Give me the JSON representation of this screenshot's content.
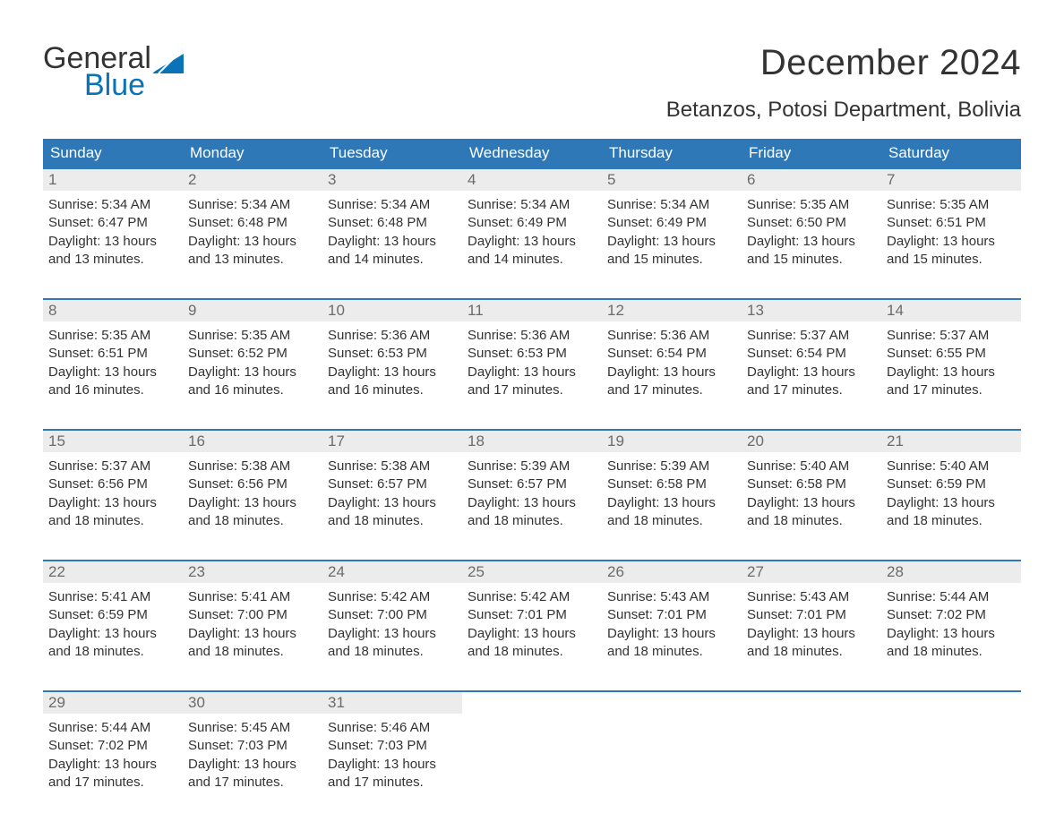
{
  "logo": {
    "text_general": "General",
    "text_blue": "Blue",
    "flag_color": "#0a73b7"
  },
  "header": {
    "month_title": "December 2024",
    "location": "Betanzos, Potosi Department, Bolivia"
  },
  "colors": {
    "header_bg": "#2f78b7",
    "header_text": "#ffffff",
    "daynum_bg": "#ececec",
    "daynum_text": "#6b6b6b",
    "body_text": "#333333",
    "row_border": "#2f78b7",
    "page_bg": "#ffffff",
    "logo_accent": "#0a73b7"
  },
  "typography": {
    "month_title_fontsize": 40,
    "location_fontsize": 24,
    "weekday_fontsize": 17,
    "daynum_fontsize": 17,
    "body_fontsize": 15,
    "font_family": "Arial"
  },
  "calendar": {
    "type": "table",
    "columns": [
      "Sunday",
      "Monday",
      "Tuesday",
      "Wednesday",
      "Thursday",
      "Friday",
      "Saturday"
    ],
    "weeks": [
      [
        {
          "day": "1",
          "sunrise": "5:34 AM",
          "sunset": "6:47 PM",
          "daylight": "13 hours and 13 minutes."
        },
        {
          "day": "2",
          "sunrise": "5:34 AM",
          "sunset": "6:48 PM",
          "daylight": "13 hours and 13 minutes."
        },
        {
          "day": "3",
          "sunrise": "5:34 AM",
          "sunset": "6:48 PM",
          "daylight": "13 hours and 14 minutes."
        },
        {
          "day": "4",
          "sunrise": "5:34 AM",
          "sunset": "6:49 PM",
          "daylight": "13 hours and 14 minutes."
        },
        {
          "day": "5",
          "sunrise": "5:34 AM",
          "sunset": "6:49 PM",
          "daylight": "13 hours and 15 minutes."
        },
        {
          "day": "6",
          "sunrise": "5:35 AM",
          "sunset": "6:50 PM",
          "daylight": "13 hours and 15 minutes."
        },
        {
          "day": "7",
          "sunrise": "5:35 AM",
          "sunset": "6:51 PM",
          "daylight": "13 hours and 15 minutes."
        }
      ],
      [
        {
          "day": "8",
          "sunrise": "5:35 AM",
          "sunset": "6:51 PM",
          "daylight": "13 hours and 16 minutes."
        },
        {
          "day": "9",
          "sunrise": "5:35 AM",
          "sunset": "6:52 PM",
          "daylight": "13 hours and 16 minutes."
        },
        {
          "day": "10",
          "sunrise": "5:36 AM",
          "sunset": "6:53 PM",
          "daylight": "13 hours and 16 minutes."
        },
        {
          "day": "11",
          "sunrise": "5:36 AM",
          "sunset": "6:53 PM",
          "daylight": "13 hours and 17 minutes."
        },
        {
          "day": "12",
          "sunrise": "5:36 AM",
          "sunset": "6:54 PM",
          "daylight": "13 hours and 17 minutes."
        },
        {
          "day": "13",
          "sunrise": "5:37 AM",
          "sunset": "6:54 PM",
          "daylight": "13 hours and 17 minutes."
        },
        {
          "day": "14",
          "sunrise": "5:37 AM",
          "sunset": "6:55 PM",
          "daylight": "13 hours and 17 minutes."
        }
      ],
      [
        {
          "day": "15",
          "sunrise": "5:37 AM",
          "sunset": "6:56 PM",
          "daylight": "13 hours and 18 minutes."
        },
        {
          "day": "16",
          "sunrise": "5:38 AM",
          "sunset": "6:56 PM",
          "daylight": "13 hours and 18 minutes."
        },
        {
          "day": "17",
          "sunrise": "5:38 AM",
          "sunset": "6:57 PM",
          "daylight": "13 hours and 18 minutes."
        },
        {
          "day": "18",
          "sunrise": "5:39 AM",
          "sunset": "6:57 PM",
          "daylight": "13 hours and 18 minutes."
        },
        {
          "day": "19",
          "sunrise": "5:39 AM",
          "sunset": "6:58 PM",
          "daylight": "13 hours and 18 minutes."
        },
        {
          "day": "20",
          "sunrise": "5:40 AM",
          "sunset": "6:58 PM",
          "daylight": "13 hours and 18 minutes."
        },
        {
          "day": "21",
          "sunrise": "5:40 AM",
          "sunset": "6:59 PM",
          "daylight": "13 hours and 18 minutes."
        }
      ],
      [
        {
          "day": "22",
          "sunrise": "5:41 AM",
          "sunset": "6:59 PM",
          "daylight": "13 hours and 18 minutes."
        },
        {
          "day": "23",
          "sunrise": "5:41 AM",
          "sunset": "7:00 PM",
          "daylight": "13 hours and 18 minutes."
        },
        {
          "day": "24",
          "sunrise": "5:42 AM",
          "sunset": "7:00 PM",
          "daylight": "13 hours and 18 minutes."
        },
        {
          "day": "25",
          "sunrise": "5:42 AM",
          "sunset": "7:01 PM",
          "daylight": "13 hours and 18 minutes."
        },
        {
          "day": "26",
          "sunrise": "5:43 AM",
          "sunset": "7:01 PM",
          "daylight": "13 hours and 18 minutes."
        },
        {
          "day": "27",
          "sunrise": "5:43 AM",
          "sunset": "7:01 PM",
          "daylight": "13 hours and 18 minutes."
        },
        {
          "day": "28",
          "sunrise": "5:44 AM",
          "sunset": "7:02 PM",
          "daylight": "13 hours and 18 minutes."
        }
      ],
      [
        {
          "day": "29",
          "sunrise": "5:44 AM",
          "sunset": "7:02 PM",
          "daylight": "13 hours and 17 minutes."
        },
        {
          "day": "30",
          "sunrise": "5:45 AM",
          "sunset": "7:03 PM",
          "daylight": "13 hours and 17 minutes."
        },
        {
          "day": "31",
          "sunrise": "5:46 AM",
          "sunset": "7:03 PM",
          "daylight": "13 hours and 17 minutes."
        },
        null,
        null,
        null,
        null
      ]
    ],
    "labels": {
      "sunrise_prefix": "Sunrise: ",
      "sunset_prefix": "Sunset: ",
      "daylight_prefix": "Daylight: "
    }
  }
}
